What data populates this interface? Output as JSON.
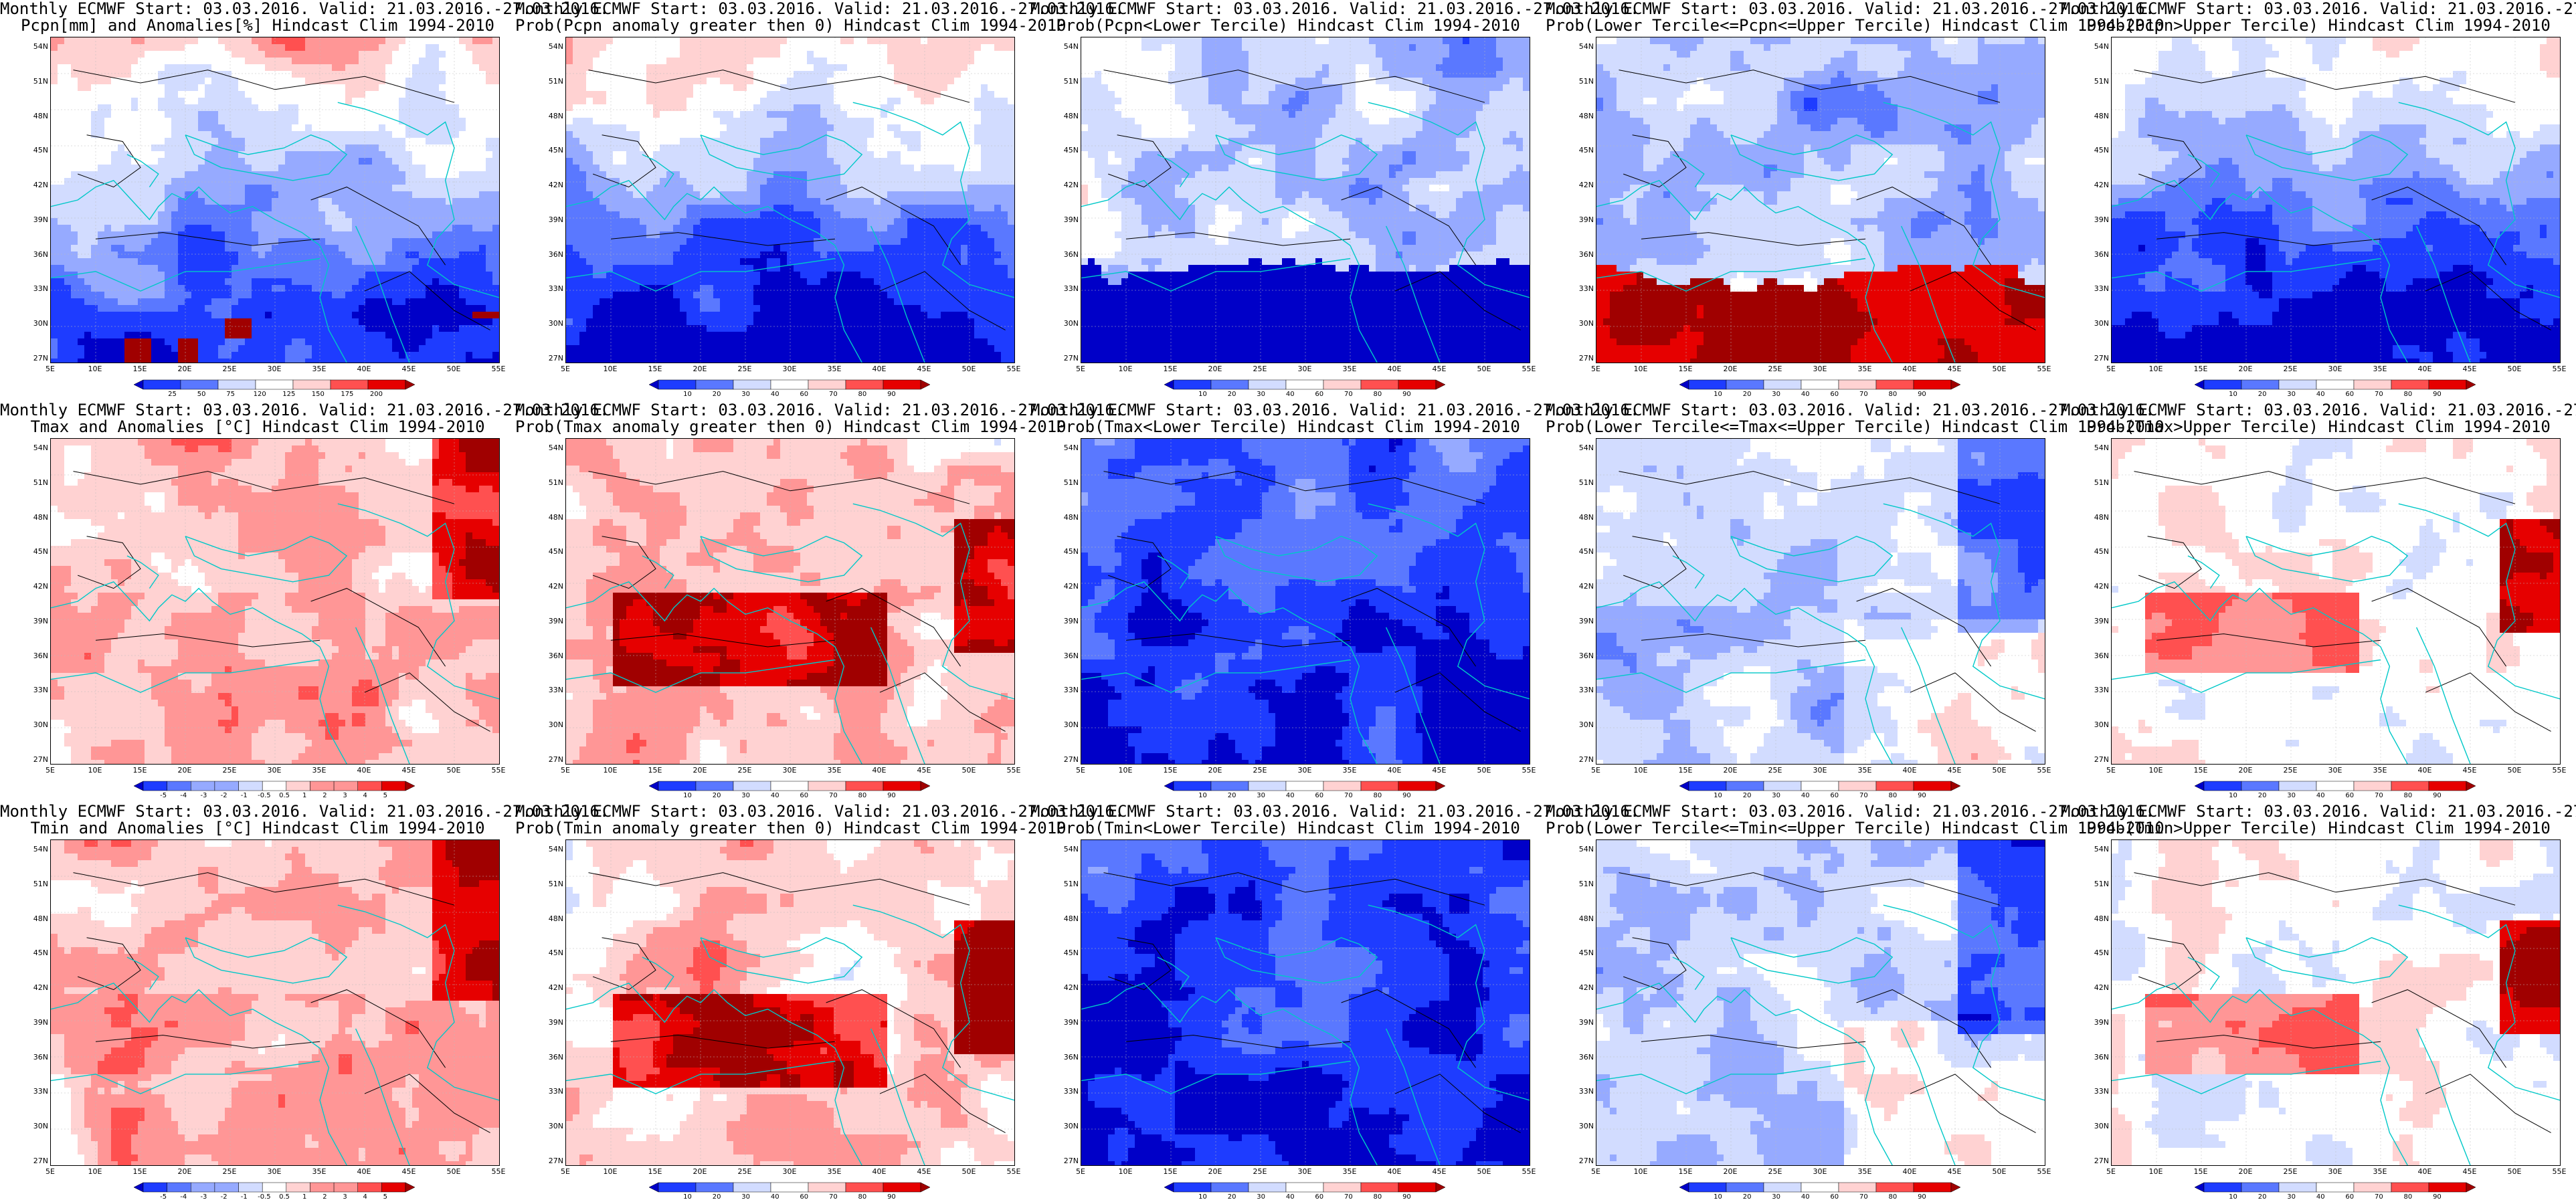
{
  "header_line": "Monthly ECMWF Start: 03.03.2016. Valid: 21.03.2016.-27.03.2016.",
  "lat_labels": [
    "54N",
    "51N",
    "48N",
    "45N",
    "42N",
    "39N",
    "36N",
    "33N",
    "30N",
    "27N"
  ],
  "lon_labels": [
    "5E",
    "10E",
    "15E",
    "20E",
    "25E",
    "30E",
    "35E",
    "40E",
    "45E",
    "50E",
    "55E"
  ],
  "colors": {
    "coast": "#00c8c8",
    "contour": "#000000",
    "prob_scale": [
      "#0000c8",
      "#1e3cff",
      "#5a78ff",
      "#96aaff",
      "#d2dcff",
      "#ffffff",
      "#ffd2d2",
      "#ff9696",
      "#ff5050",
      "#e60000",
      "#a00000"
    ],
    "anom_scale": [
      "#0000c8",
      "#1e3cff",
      "#5a78ff",
      "#96aaff",
      "#d2dcff",
      "#ffffff",
      "#ffd2d2",
      "#ff9696",
      "#ff5050",
      "#e60000",
      "#a00000"
    ]
  },
  "colorbars": {
    "pcpn_anom": [
      "25",
      "50",
      "75",
      "120",
      "125",
      "150",
      "175",
      "200"
    ],
    "prob": [
      "10",
      "20",
      "30",
      "40",
      "60",
      "70",
      "80",
      "90"
    ],
    "temp_anom": [
      "-5",
      "-4",
      "-3",
      "-2",
      "-1",
      "-0.5",
      "0.5",
      "1",
      "2",
      "3",
      "4",
      "5"
    ]
  },
  "panels": [
    {
      "title": "Pcpn[mm] and Anomalies[%] Hindcast Clim 1994-2010",
      "cbar": "pcpn_anom",
      "style": "p_anom"
    },
    {
      "title": "Prob(Pcpn anomaly greater then 0) Hindcast Clim 1994-2010",
      "cbar": "prob",
      "style": "p_gt0"
    },
    {
      "title": "Prob(Pcpn<Lower Tercile) Hindcast Clim 1994-2010",
      "cbar": "prob",
      "style": "p_low"
    },
    {
      "title": "Prob(Lower Tercile<=Pcpn<=Upper Tercile) Hindcast Clim 1994-2010",
      "cbar": "prob",
      "style": "p_mid"
    },
    {
      "title": "Prob(Pcpn>Upper Tercile) Hindcast Clim 1994-2010",
      "cbar": "prob",
      "style": "p_up"
    },
    {
      "title": "Tmax and Anomalies [°C] Hindcast Clim 1994-2010",
      "cbar": "temp_anom",
      "style": "t_anom"
    },
    {
      "title": "Prob(Tmax anomaly greater then 0) Hindcast Clim 1994-2010",
      "cbar": "prob",
      "style": "t_gt0"
    },
    {
      "title": "Prob(Tmax<Lower Tercile) Hindcast Clim 1994-2010",
      "cbar": "prob",
      "style": "t_low"
    },
    {
      "title": "Prob(Lower Tercile<=Tmax<=Upper Tercile) Hindcast Clim 1994-2010",
      "cbar": "prob",
      "style": "t_mid"
    },
    {
      "title": "Prob(Tmax>Upper Tercile) Hindcast Clim 1994-2010",
      "cbar": "prob",
      "style": "t_up"
    },
    {
      "title": "Tmin and Anomalies [°C] Hindcast Clim 1994-2010",
      "cbar": "temp_anom",
      "style": "t_anom"
    },
    {
      "title": "Prob(Tmin anomaly greater then 0) Hindcast Clim 1994-2010",
      "cbar": "prob",
      "style": "t_gt0"
    },
    {
      "title": "Prob(Tmin<Lower Tercile) Hindcast Clim 1994-2010",
      "cbar": "prob",
      "style": "t_low"
    },
    {
      "title": "Prob(Lower Tercile<=Tmin<=Upper Tercile) Hindcast Clim 1994-2010",
      "cbar": "prob",
      "style": "t_mid"
    },
    {
      "title": "Prob(Tmin>Upper Tercile) Hindcast Clim 1994-2010",
      "cbar": "prob",
      "style": "t_up"
    }
  ]
}
